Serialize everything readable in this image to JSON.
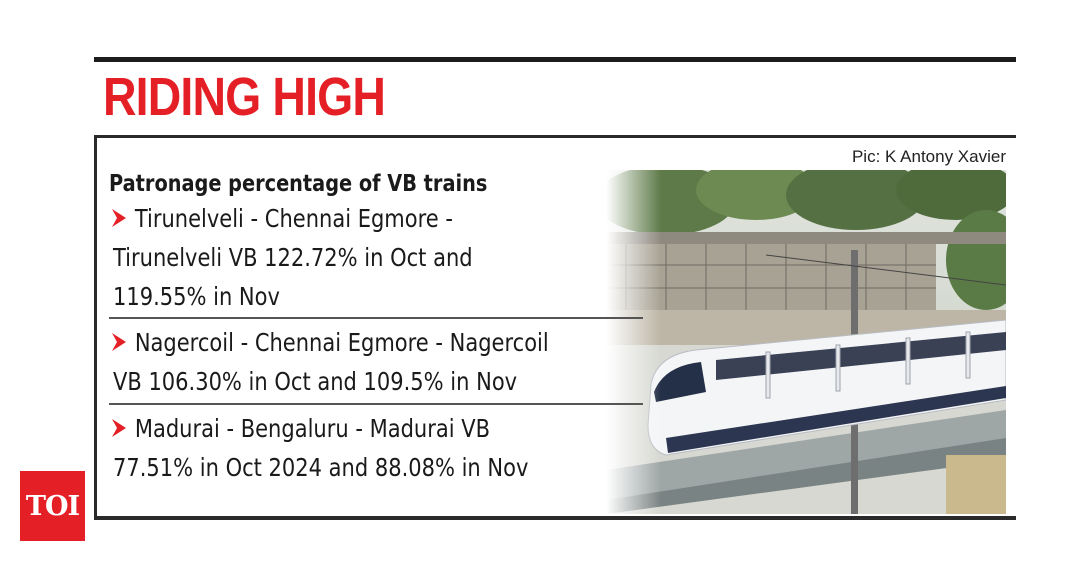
{
  "headline": "RIDING HIGH",
  "photo_credit": "Pic: K Antony Xavier",
  "subtitle": "Patronage percentage of VB trains",
  "items": [
    {
      "lines": [
        "Tirunelveli - Chennai Egmore -",
        "Tirunelveli VB  122.72% in Oct and",
        "119.55% in Nov"
      ]
    },
    {
      "lines": [
        "Nagercoil - Chennai Egmore - Nagercoil",
        "VB 106.30%  in Oct and 109.5% in Nov"
      ]
    },
    {
      "lines": [
        "Madurai - Bengaluru - Madurai VB",
        "77.51% in Oct 2024 and 88.08% in Nov"
      ]
    }
  ],
  "logo": "TOI",
  "colors": {
    "accent": "#e41f26",
    "text": "#1a1a1a",
    "rule": "#2a2a2a"
  },
  "icons": {
    "bullet": "red-chevron-arrow-icon",
    "photo": "vande-bharat-train-photo"
  }
}
